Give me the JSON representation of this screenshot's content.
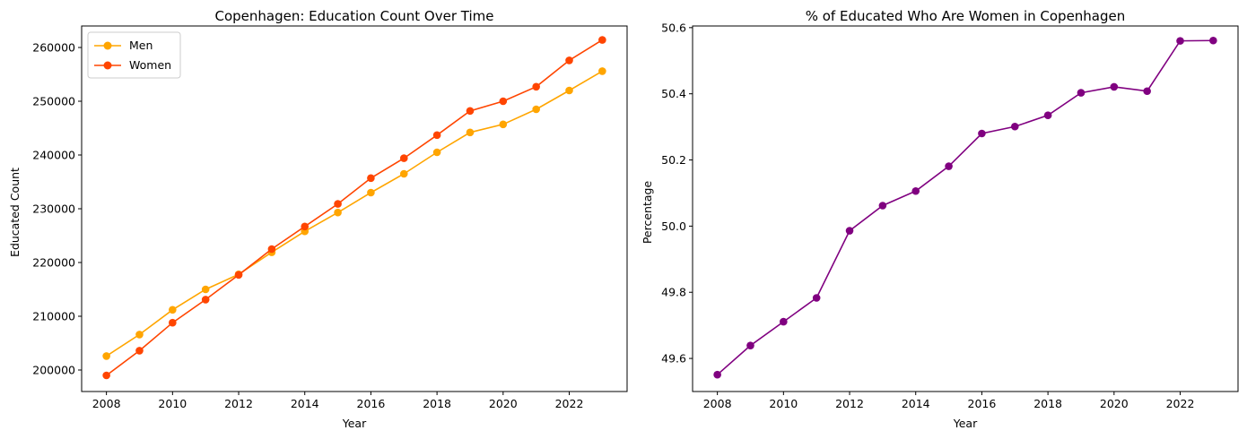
{
  "chart_data": [
    {
      "type": "line",
      "title": "Copenhagen: Education Count Over Time",
      "xlabel": "Year",
      "ylabel": "Educated Count",
      "x": [
        2008,
        2009,
        2010,
        2011,
        2012,
        2013,
        2014,
        2015,
        2016,
        2017,
        2018,
        2019,
        2020,
        2021,
        2022,
        2023
      ],
      "xticks": [
        2008,
        2010,
        2012,
        2014,
        2016,
        2018,
        2020,
        2022
      ],
      "yticks": [
        200000,
        210000,
        220000,
        230000,
        240000,
        250000,
        260000
      ],
      "xlim": [
        2007.25,
        2023.75
      ],
      "ylim": [
        196000,
        264000
      ],
      "grid": false,
      "legend": "top-left",
      "series": [
        {
          "name": "Men",
          "color": "#ffa500",
          "values": [
            202600,
            206600,
            211200,
            215000,
            217800,
            221900,
            225800,
            229300,
            233000,
            236500,
            240500,
            244200,
            245700,
            248500,
            252000,
            255600
          ]
        },
        {
          "name": "Women",
          "color": "#ff4500",
          "values": [
            199000,
            203600,
            208800,
            213100,
            217700,
            222500,
            226700,
            230900,
            235700,
            239400,
            243700,
            248200,
            250000,
            252700,
            257600,
            261400
          ]
        }
      ]
    },
    {
      "type": "line",
      "title": "% of Educated Who Are Women in Copenhagen",
      "xlabel": "Year",
      "ylabel": "Percentage",
      "x": [
        2008,
        2009,
        2010,
        2011,
        2012,
        2013,
        2014,
        2015,
        2016,
        2017,
        2018,
        2019,
        2020,
        2021,
        2022,
        2023
      ],
      "xticks": [
        2008,
        2010,
        2012,
        2014,
        2016,
        2018,
        2020,
        2022
      ],
      "yticks": [
        49.6,
        49.8,
        50.0,
        50.2,
        50.4,
        50.6
      ],
      "xlim": [
        2007.25,
        2023.75
      ],
      "ylim": [
        49.5,
        50.605
      ],
      "grid": false,
      "series": [
        {
          "name": "",
          "color": "#800080",
          "values": [
            49.551,
            49.639,
            49.711,
            49.783,
            49.986,
            50.062,
            50.106,
            50.181,
            50.28,
            50.301,
            50.335,
            50.403,
            50.421,
            50.408,
            50.56,
            50.561
          ]
        }
      ]
    }
  ]
}
